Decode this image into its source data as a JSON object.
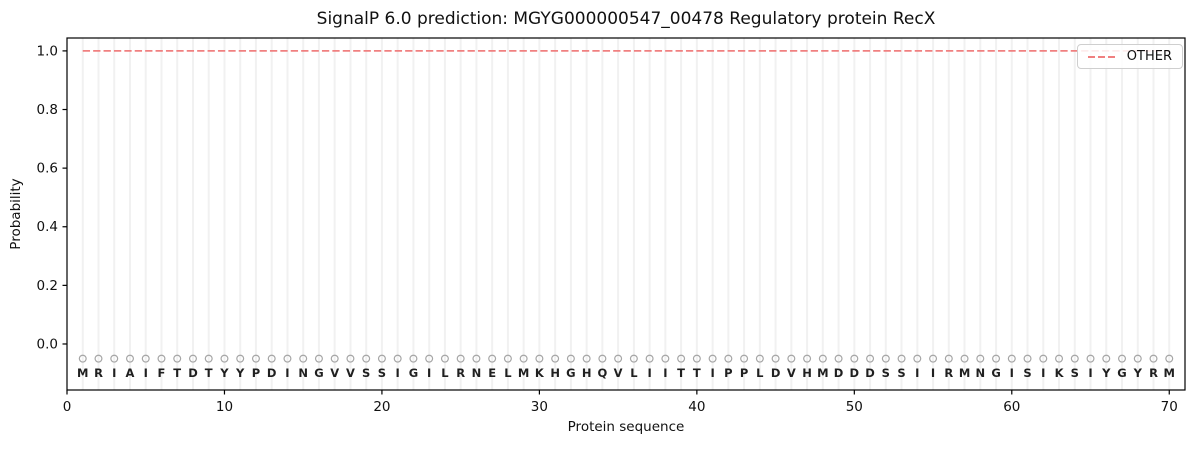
{
  "title": "SignalP 6.0 prediction: MGYG000000547_00478 Regulatory protein RecX",
  "legend": {
    "position": "upper right",
    "items": [
      {
        "label": "OTHER",
        "color": "#f08080",
        "linestyle": "dashed"
      }
    ]
  },
  "colors": {
    "line_other": "#f08080",
    "grid": "#f1f1f1",
    "spine": "#000000",
    "marker_edge": "#a6a6a6",
    "letter": "#1f1f1f",
    "tick_text": "#111111"
  },
  "chart_data": {
    "type": "line",
    "title": "SignalP 6.0 prediction: MGYG000000547_00478 Regulatory protein RecX",
    "xlabel": "Protein sequence",
    "ylabel": "Probability",
    "xlim": [
      0,
      71
    ],
    "ylim": [
      -0.157,
      1.044
    ],
    "x_ticks": [
      0,
      10,
      20,
      30,
      40,
      50,
      60,
      70
    ],
    "y_ticks": [
      0.0,
      0.2,
      0.4,
      0.6,
      0.8,
      1.0
    ],
    "grid": "vertical gridline at every residue position",
    "legend_position": "upper right",
    "sequence": "MRIAIFTDTYYPDINGVVSSIGILRNELMKHGHQVLIITTIPPLDVHMDDDSSIIRMNGISIKSIYGYRM",
    "sequence_length": 70,
    "series": [
      {
        "name": "OTHER",
        "color": "#f08080",
        "linestyle": "dashed",
        "x_start": 1,
        "y": [
          1,
          1,
          1,
          1,
          1,
          1,
          1,
          1,
          1,
          1,
          1,
          1,
          1,
          1,
          1,
          1,
          1,
          1,
          1,
          1,
          1,
          1,
          1,
          1,
          1,
          1,
          1,
          1,
          1,
          1,
          1,
          1,
          1,
          1,
          1,
          1,
          1,
          1,
          1,
          1,
          1,
          1,
          1,
          1,
          1,
          1,
          1,
          1,
          1,
          1,
          1,
          1,
          1,
          1,
          1,
          1,
          1,
          1,
          1,
          1,
          1,
          1,
          1,
          1,
          1,
          1,
          1,
          1,
          1,
          1
        ]
      }
    ],
    "residue_markers": {
      "shape": "circle",
      "y": -0.05,
      "edge_color": "#a6a6a6"
    },
    "residue_letters_y": -0.099
  }
}
